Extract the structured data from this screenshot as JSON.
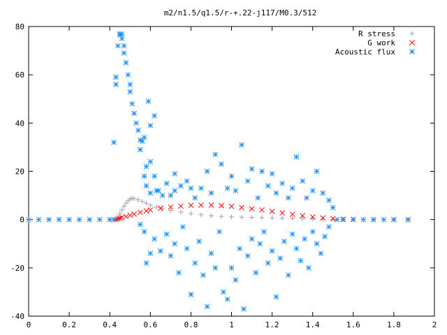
{
  "chart_data": {
    "type": "scatter",
    "title": "m2/n1.5/q1.5/r-+.22-j117/M0.3/512",
    "xlabel": "",
    "ylabel": "",
    "xlim": [
      0,
      2
    ],
    "ylim": [
      -40,
      80
    ],
    "x_ticks": [
      "0",
      "0.2",
      "0.4",
      "0.6",
      "0.8",
      "1",
      "1.2",
      "1.4",
      "1.6",
      "1.8",
      "2"
    ],
    "y_ticks": [
      "-40",
      "-20",
      "0",
      "20",
      "40",
      "60",
      "80"
    ],
    "grid": false,
    "legend_position": "top-right",
    "series": [
      {
        "name": "R stress",
        "marker": "plus",
        "color": "#a0a0a0",
        "points": [
          [
            0.0,
            0.0
          ],
          [
            0.1,
            0.0
          ],
          [
            0.2,
            0.0
          ],
          [
            0.3,
            0.0
          ],
          [
            0.4,
            0.0
          ],
          [
            0.43,
            0.0
          ],
          [
            0.44,
            1.0
          ],
          [
            0.45,
            2.5
          ],
          [
            0.46,
            4.0
          ],
          [
            0.47,
            5.5
          ],
          [
            0.48,
            6.8
          ],
          [
            0.49,
            7.8
          ],
          [
            0.5,
            8.5
          ],
          [
            0.51,
            8.8
          ],
          [
            0.52,
            8.7
          ],
          [
            0.54,
            8.2
          ],
          [
            0.56,
            7.5
          ],
          [
            0.58,
            6.8
          ],
          [
            0.6,
            6.0
          ],
          [
            0.63,
            5.2
          ],
          [
            0.66,
            4.5
          ],
          [
            0.7,
            3.8
          ],
          [
            0.75,
            3.1
          ],
          [
            0.8,
            2.5
          ],
          [
            0.85,
            2.0
          ],
          [
            0.9,
            1.6
          ],
          [
            0.95,
            1.3
          ],
          [
            1.0,
            1.1
          ],
          [
            1.05,
            1.0
          ],
          [
            1.1,
            0.9
          ],
          [
            1.15,
            0.8
          ],
          [
            1.2,
            0.7
          ],
          [
            1.25,
            0.6
          ],
          [
            1.3,
            0.5
          ],
          [
            1.35,
            0.4
          ],
          [
            1.4,
            0.3
          ],
          [
            1.45,
            0.2
          ],
          [
            1.5,
            0.1
          ],
          [
            1.55,
            0.05
          ],
          [
            1.6,
            0.0
          ],
          [
            1.7,
            0.0
          ],
          [
            1.8,
            0.0
          ],
          [
            1.87,
            0.0
          ]
        ]
      },
      {
        "name": "G work",
        "marker": "cross",
        "color": "#ff0000",
        "points": [
          [
            0.43,
            0.0
          ],
          [
            0.44,
            0.3
          ],
          [
            0.45,
            0.6
          ],
          [
            0.46,
            0.9
          ],
          [
            0.48,
            1.3
          ],
          [
            0.5,
            1.8
          ],
          [
            0.52,
            2.3
          ],
          [
            0.55,
            3.0
          ],
          [
            0.58,
            3.6
          ],
          [
            0.6,
            4.0
          ],
          [
            0.65,
            4.7
          ],
          [
            0.7,
            5.2
          ],
          [
            0.75,
            5.6
          ],
          [
            0.8,
            5.9
          ],
          [
            0.85,
            6.0
          ],
          [
            0.9,
            6.0
          ],
          [
            0.95,
            5.8
          ],
          [
            1.0,
            5.5
          ],
          [
            1.05,
            5.0
          ],
          [
            1.1,
            4.5
          ],
          [
            1.15,
            4.0
          ],
          [
            1.2,
            3.4
          ],
          [
            1.25,
            2.8
          ],
          [
            1.3,
            2.2
          ],
          [
            1.35,
            1.6
          ],
          [
            1.4,
            1.1
          ],
          [
            1.45,
            0.7
          ],
          [
            1.5,
            0.4
          ],
          [
            1.55,
            0.2
          ],
          [
            1.6,
            0.1
          ],
          [
            1.7,
            0.0
          ],
          [
            1.8,
            0.0
          ],
          [
            1.87,
            0.0
          ]
        ]
      },
      {
        "name": "Acoustic flux",
        "marker": "star",
        "color": "#1e90ff",
        "points": [
          [
            0.0,
            0.0
          ],
          [
            0.05,
            0.0
          ],
          [
            0.1,
            0.0
          ],
          [
            0.15,
            0.0
          ],
          [
            0.2,
            0.0
          ],
          [
            0.25,
            0.0
          ],
          [
            0.3,
            0.0
          ],
          [
            0.35,
            0.0
          ],
          [
            0.4,
            0.0
          ],
          [
            0.42,
            0.0
          ],
          [
            0.42,
            32.0
          ],
          [
            0.43,
            56.0
          ],
          [
            0.43,
            59.0
          ],
          [
            0.44,
            72.0
          ],
          [
            0.45,
            76.5
          ],
          [
            0.45,
            77.0
          ],
          [
            0.46,
            76.8
          ],
          [
            0.46,
            75.0
          ],
          [
            0.47,
            72.0
          ],
          [
            0.47,
            69.0
          ],
          [
            0.48,
            65.0
          ],
          [
            0.49,
            60.0
          ],
          [
            0.5,
            56.0
          ],
          [
            0.5,
            53.0
          ],
          [
            0.51,
            48.0
          ],
          [
            0.52,
            44.0
          ],
          [
            0.53,
            40.0
          ],
          [
            0.54,
            37.0
          ],
          [
            0.55,
            33.0
          ],
          [
            0.56,
            32.5
          ],
          [
            0.55,
            29.0
          ],
          [
            0.57,
            34.0
          ],
          [
            0.59,
            49.0
          ],
          [
            0.6,
            39.0
          ],
          [
            0.62,
            43.0
          ],
          [
            0.58,
            22.0
          ],
          [
            0.6,
            24.0
          ],
          [
            0.57,
            18.0
          ],
          [
            0.62,
            18.0
          ],
          [
            0.58,
            14.0
          ],
          [
            0.63,
            12.0
          ],
          [
            0.6,
            11.0
          ],
          [
            0.64,
            12.0
          ],
          [
            0.66,
            10.0
          ],
          [
            0.68,
            15.0
          ],
          [
            0.7,
            10.0
          ],
          [
            0.72,
            19.0
          ],
          [
            0.72,
            12.0
          ],
          [
            0.75,
            14.0
          ],
          [
            0.78,
            16.0
          ],
          [
            0.8,
            13.0
          ],
          [
            0.82,
            9.0
          ],
          [
            0.85,
            13.0
          ],
          [
            0.88,
            20.0
          ],
          [
            0.9,
            11.0
          ],
          [
            0.92,
            27.0
          ],
          [
            0.95,
            23.0
          ],
          [
            0.98,
            13.0
          ],
          [
            1.0,
            18.0
          ],
          [
            1.02,
            12.0
          ],
          [
            1.05,
            31.0
          ],
          [
            1.08,
            16.0
          ],
          [
            1.1,
            21.0
          ],
          [
            1.13,
            9.0
          ],
          [
            1.15,
            20.0
          ],
          [
            1.18,
            14.0
          ],
          [
            1.2,
            19.0
          ],
          [
            1.22,
            11.0
          ],
          [
            1.25,
            15.0
          ],
          [
            1.28,
            9.0
          ],
          [
            1.3,
            13.0
          ],
          [
            1.32,
            26.0
          ],
          [
            1.35,
            16.0
          ],
          [
            1.37,
            9.0
          ],
          [
            1.4,
            12.0
          ],
          [
            1.42,
            20.0
          ],
          [
            1.45,
            11.0
          ],
          [
            1.48,
            8.0
          ],
          [
            1.5,
            5.0
          ],
          [
            0.55,
            -2.0
          ],
          [
            0.57,
            -5.0
          ],
          [
            0.58,
            -18.0
          ],
          [
            0.6,
            -14.0
          ],
          [
            0.62,
            -8.0
          ],
          [
            0.65,
            -13.0
          ],
          [
            0.68,
            -6.0
          ],
          [
            0.7,
            -15.0
          ],
          [
            0.72,
            -10.0
          ],
          [
            0.74,
            -22.0
          ],
          [
            0.76,
            -3.0
          ],
          [
            0.78,
            -12.0
          ],
          [
            0.8,
            -31.0
          ],
          [
            0.82,
            -18.0
          ],
          [
            0.84,
            -9.0
          ],
          [
            0.86,
            -23.0
          ],
          [
            0.88,
            -36.0
          ],
          [
            0.9,
            -14.0
          ],
          [
            0.92,
            -20.0
          ],
          [
            0.94,
            -5.0
          ],
          [
            0.96,
            -30.0
          ],
          [
            0.98,
            -33.0
          ],
          [
            1.0,
            -20.0
          ],
          [
            1.02,
            -25.0
          ],
          [
            1.04,
            -12.0
          ],
          [
            1.06,
            -37.0
          ],
          [
            1.08,
            -15.0
          ],
          [
            1.1,
            -8.0
          ],
          [
            1.12,
            -22.0
          ],
          [
            1.14,
            -10.0
          ],
          [
            1.16,
            -5.0
          ],
          [
            1.18,
            -18.0
          ],
          [
            1.2,
            -13.0
          ],
          [
            1.22,
            -32.0
          ],
          [
            1.24,
            -16.0
          ],
          [
            1.26,
            -9.0
          ],
          [
            1.28,
            -23.0
          ],
          [
            1.3,
            -6.0
          ],
          [
            1.32,
            -12.0
          ],
          [
            1.34,
            -17.0
          ],
          [
            1.36,
            -8.0
          ],
          [
            1.38,
            -20.0
          ],
          [
            1.4,
            -5.0
          ],
          [
            1.42,
            -10.0
          ],
          [
            1.44,
            -14.0
          ],
          [
            1.46,
            -7.0
          ],
          [
            1.48,
            -3.0
          ],
          [
            1.52,
            0.0
          ],
          [
            1.55,
            0.0
          ],
          [
            1.6,
            0.0
          ],
          [
            1.65,
            0.0
          ],
          [
            1.7,
            0.0
          ],
          [
            1.75,
            0.0
          ],
          [
            1.8,
            0.0
          ],
          [
            1.87,
            0.0
          ]
        ]
      }
    ]
  }
}
